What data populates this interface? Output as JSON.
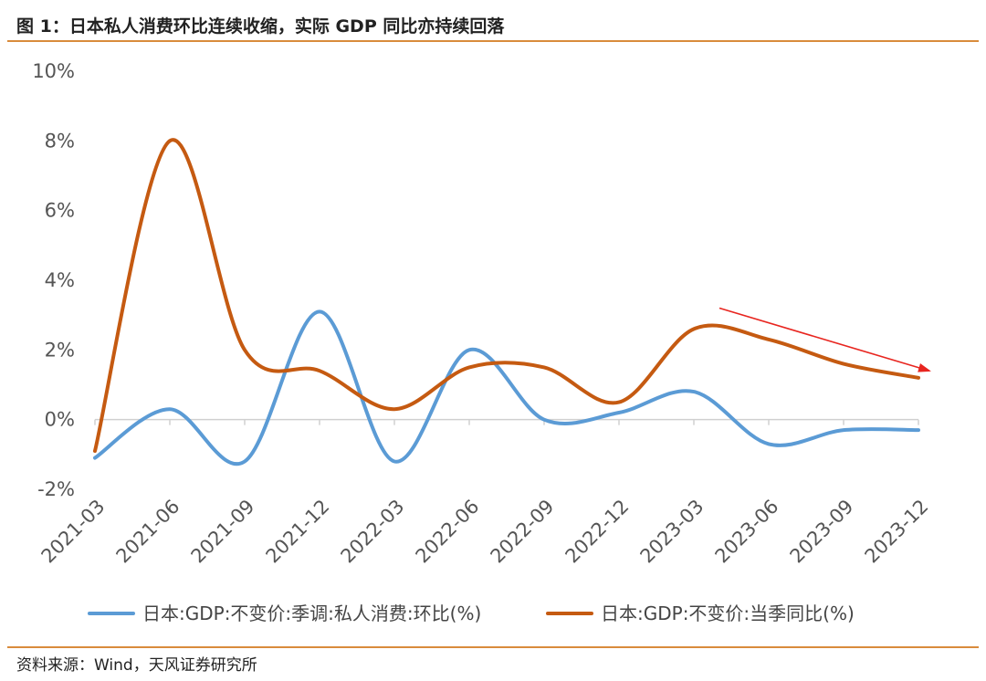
{
  "header": {
    "title": "图 1：日本私人消费环比连续收缩，实际 GDP 同比亦持续回落"
  },
  "footer": {
    "source": "资料来源：Wind，天风证券研究所"
  },
  "chart_data": {
    "type": "line",
    "title": "",
    "xlabel": "",
    "ylabel": "",
    "ylim": [
      -2,
      10
    ],
    "yticks": [
      -2,
      0,
      2,
      4,
      6,
      8,
      10
    ],
    "y_tick_format": "%",
    "x": [
      "2021-03",
      "2021-06",
      "2021-09",
      "2021-12",
      "2022-03",
      "2022-06",
      "2022-09",
      "2022-12",
      "2023-03",
      "2023-06",
      "2023-09",
      "2023-12"
    ],
    "grid": false,
    "legend_position": "bottom",
    "series": [
      {
        "name": "日本:GDP:不变价:季调:私人消费:环比(%)",
        "color": "#5b9bd5",
        "values": [
          -1.1,
          0.3,
          -1.2,
          3.1,
          -1.2,
          2.0,
          0.0,
          0.2,
          0.8,
          -0.7,
          -0.3,
          -0.3
        ]
      },
      {
        "name": "日本:GDP:不变价:当季同比(%)",
        "color": "#c55a11",
        "values": [
          -0.9,
          8.0,
          2.0,
          1.4,
          0.3,
          1.5,
          1.5,
          0.5,
          2.6,
          2.3,
          1.6,
          1.2
        ]
      }
    ],
    "annotation": {
      "type": "trend-arrow",
      "color": "#e8251f",
      "from": [
        "2023-03",
        3.2
      ],
      "to": [
        "2023-12",
        1.4
      ]
    }
  }
}
